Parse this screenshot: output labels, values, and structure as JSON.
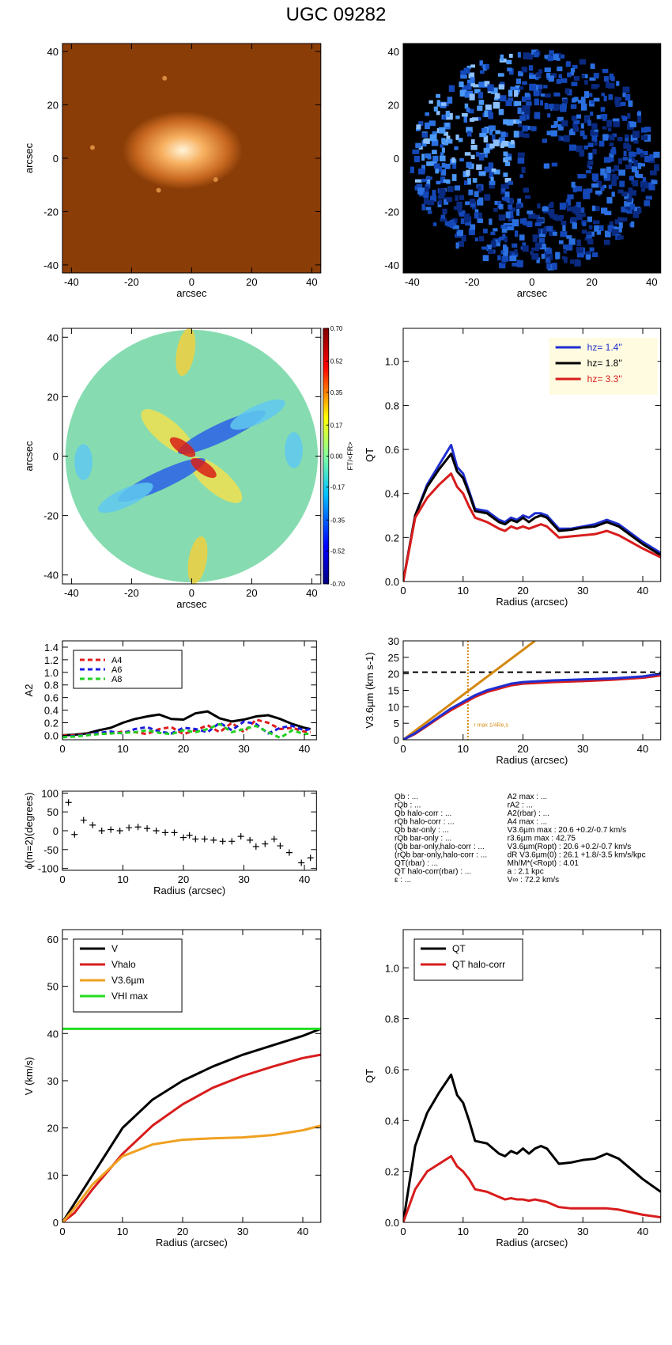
{
  "title": "UGC 09282",
  "chart_data": [
    {
      "type": "image",
      "colormap": "orange",
      "xlim": [
        -43,
        43
      ],
      "ylim": [
        -43,
        43
      ],
      "xticks": [
        -40,
        -20,
        0,
        20,
        40
      ],
      "yticks": [
        -40,
        -20,
        0,
        20,
        40
      ],
      "xlabel": "arcsec",
      "ylabel": "arcsec"
    },
    {
      "type": "image",
      "colormap": "blue",
      "xlim": [
        -43,
        43
      ],
      "ylim": [
        -43,
        43
      ],
      "xticks": [
        -40,
        -20,
        0,
        20,
        40
      ],
      "yticks": [
        -40,
        -20,
        0,
        20,
        40
      ],
      "xlabel": "arcsec"
    },
    {
      "type": "image",
      "colormap": "map",
      "xlim": [
        -43,
        43
      ],
      "ylim": [
        -43,
        43
      ],
      "xticks": [
        -40,
        -20,
        0,
        20,
        40
      ],
      "yticks": [
        -40,
        -20,
        0,
        20,
        40
      ],
      "xlabel": "arcsec",
      "ylabel": "arcsec",
      "clim": [
        -0.7,
        0.7
      ],
      "clabel": "FT/<FR>",
      "cticks": [
        {
          "value": 0.7,
          "label": "0.70"
        },
        {
          "value": 0.52,
          "label": "0.52"
        },
        {
          "value": 0.35,
          "label": "0.35"
        },
        {
          "value": 0.17,
          "label": "0.17"
        },
        {
          "value": 0,
          "label": "0.00"
        },
        {
          "value": -0.17,
          "label": "-0.17"
        },
        {
          "value": -0.35,
          "label": "-0.35"
        },
        {
          "value": -0.52,
          "label": "-0.52"
        },
        {
          "value": -0.7,
          "label": "-0.70"
        }
      ]
    },
    {
      "type": "line",
      "xlim": [
        0,
        43
      ],
      "ylim": [
        0,
        1.15
      ],
      "xticks": [
        0,
        10,
        20,
        30,
        40
      ],
      "yticks": [
        {
          "value": 0,
          "label": "0.0"
        },
        {
          "value": 0.2,
          "label": "0.2"
        },
        {
          "value": 0.4,
          "label": "0.4"
        },
        {
          "value": 0.6,
          "label": "0.6"
        },
        {
          "value": 0.8,
          "label": "0.8"
        },
        {
          "value": 1.0,
          "label": "1.0"
        }
      ],
      "xlabel": "Radius (arcsec)",
      "ylabel": "QT",
      "legend": "upper right",
      "series": [
        {
          "name": "hz=  1.4''",
          "color": "#1f2fd0",
          "x": [
            0,
            2,
            4,
            6,
            8,
            9,
            10,
            11,
            12,
            14,
            16,
            17,
            18,
            19,
            20,
            21,
            22,
            23,
            24,
            26,
            28,
            30,
            32,
            34,
            36,
            38,
            40,
            43
          ],
          "values": [
            0,
            0.3,
            0.44,
            0.53,
            0.62,
            0.52,
            0.49,
            0.41,
            0.33,
            0.32,
            0.28,
            0.27,
            0.29,
            0.28,
            0.3,
            0.29,
            0.31,
            0.31,
            0.3,
            0.24,
            0.24,
            0.25,
            0.26,
            0.28,
            0.26,
            0.22,
            0.18,
            0.13
          ]
        },
        {
          "name": "hz=  1.8''",
          "color": "#000000",
          "x": [
            0,
            2,
            4,
            6,
            8,
            9,
            10,
            11,
            12,
            14,
            16,
            17,
            18,
            19,
            20,
            21,
            22,
            23,
            24,
            26,
            28,
            30,
            32,
            34,
            36,
            38,
            40,
            43
          ],
          "values": [
            0,
            0.3,
            0.43,
            0.51,
            0.58,
            0.5,
            0.47,
            0.4,
            0.32,
            0.31,
            0.27,
            0.26,
            0.28,
            0.27,
            0.29,
            0.27,
            0.29,
            0.3,
            0.29,
            0.23,
            0.235,
            0.245,
            0.25,
            0.27,
            0.25,
            0.21,
            0.17,
            0.12
          ]
        },
        {
          "name": "hz=  3.3''",
          "color": "#d81c1c",
          "x": [
            0,
            2,
            4,
            6,
            8,
            9,
            10,
            11,
            12,
            14,
            16,
            17,
            18,
            19,
            20,
            21,
            22,
            23,
            24,
            26,
            28,
            30,
            32,
            34,
            36,
            38,
            40,
            43
          ],
          "values": [
            0,
            0.29,
            0.38,
            0.44,
            0.49,
            0.43,
            0.4,
            0.34,
            0.29,
            0.27,
            0.24,
            0.23,
            0.25,
            0.24,
            0.25,
            0.24,
            0.25,
            0.26,
            0.25,
            0.2,
            0.205,
            0.21,
            0.215,
            0.23,
            0.21,
            0.18,
            0.15,
            0.11
          ]
        }
      ]
    },
    {
      "type": "line",
      "xlim": [
        0,
        42
      ],
      "ylim": [
        -0.07,
        1.5
      ],
      "xticks": [
        0,
        10,
        20,
        30,
        40
      ],
      "yticks": [
        {
          "value": 0,
          "label": "0.0"
        },
        {
          "value": 0.2,
          "label": "0.2"
        },
        {
          "value": 0.4,
          "label": "0.4"
        },
        {
          "value": 0.6,
          "label": "0.6"
        },
        {
          "value": 0.8,
          "label": "0.8"
        },
        {
          "value": 1.0,
          "label": "1.0"
        },
        {
          "value": 1.2,
          "label": "1.2"
        },
        {
          "value": 1.4,
          "label": "1.4"
        }
      ],
      "ylabel": "A2",
      "legend": "upper left",
      "series": [
        {
          "color": "#000000",
          "x": [
            0,
            2,
            4,
            6,
            8,
            10,
            12,
            14,
            16,
            18,
            20,
            22,
            24,
            26,
            28,
            30,
            32,
            34,
            36,
            38,
            40,
            41
          ],
          "values": [
            0,
            0.01,
            0.03,
            0.08,
            0.12,
            0.2,
            0.26,
            0.3,
            0.33,
            0.26,
            0.25,
            0.35,
            0.38,
            0.27,
            0.22,
            0.25,
            0.3,
            0.32,
            0.26,
            0.18,
            0.12,
            0.1
          ]
        },
        {
          "name": "A4",
          "color": "#e01c1c",
          "dash": true,
          "x": [
            0,
            2,
            4,
            6,
            8,
            10,
            12,
            14,
            16,
            18,
            20,
            22,
            24,
            26,
            28,
            30,
            32,
            34,
            36,
            38,
            40,
            41
          ],
          "values": [
            0,
            0,
            0.02,
            0.03,
            0.03,
            0.06,
            0.05,
            0.02,
            0.1,
            0.13,
            0.02,
            0.08,
            0.16,
            0.05,
            0.2,
            0.05,
            0.25,
            0.2,
            0.1,
            0.12,
            0.06,
            0.05
          ]
        },
        {
          "name": "A6",
          "color": "#1c1ce0",
          "dash": true,
          "x": [
            0,
            2,
            4,
            6,
            8,
            10,
            12,
            14,
            16,
            18,
            20,
            22,
            24,
            26,
            28,
            30,
            32,
            34,
            36,
            38,
            40,
            41
          ],
          "values": [
            -0.02,
            -0.01,
            0.01,
            0.04,
            0.06,
            0.03,
            0.1,
            0.13,
            0.06,
            0.03,
            0.12,
            0.1,
            0.05,
            0.2,
            0.08,
            0.22,
            0.18,
            0.03,
            0.12,
            0.15,
            0.08,
            0.1
          ]
        },
        {
          "name": "A8",
          "color": "#22d022",
          "dash": true,
          "x": [
            0,
            2,
            4,
            6,
            8,
            10,
            12,
            14,
            16,
            18,
            20,
            22,
            24,
            26,
            28,
            30,
            32,
            34,
            36,
            38,
            40,
            41
          ],
          "values": [
            -0.03,
            -0.02,
            0,
            0.02,
            0.03,
            0.04,
            0.05,
            0.08,
            0.04,
            0.02,
            0.08,
            0.05,
            0.1,
            0.18,
            0.05,
            0.1,
            0.15,
            0.05,
            -0.04,
            0.08,
            0.02,
            0.03
          ]
        }
      ]
    },
    {
      "type": "line",
      "xlim": [
        0,
        43
      ],
      "ylim": [
        0,
        30
      ],
      "xticks": [
        0,
        10,
        20,
        30,
        40
      ],
      "yticks": [
        0,
        5,
        10,
        15,
        20,
        25,
        30
      ],
      "xlabel": "Radius (arcsec)",
      "ylabel": "V3.6µm (km s-1)",
      "hlines": [
        {
          "y": 20.5,
          "color": "#000000"
        }
      ],
      "vlines": [
        {
          "x": 10.8,
          "color": "#d4880f"
        }
      ],
      "annotation": "r max 1/4Re,s",
      "series": [
        {
          "color": "#d4880f",
          "x": [
            0,
            22
          ],
          "values": [
            0,
            30
          ]
        },
        {
          "color": "#d81c1c",
          "x": [
            0,
            2,
            4,
            6,
            8,
            10,
            12,
            14,
            16,
            18,
            20,
            25,
            30,
            35,
            40,
            43
          ],
          "values": [
            0,
            1.8,
            4.2,
            6.7,
            9,
            11,
            13,
            14.5,
            15.5,
            16.5,
            17,
            17.5,
            17.8,
            18.2,
            18.8,
            19.5
          ]
        },
        {
          "color": "#1f2fd0",
          "x": [
            0,
            2,
            4,
            6,
            8,
            10,
            12,
            14,
            16,
            18,
            20,
            25,
            30,
            35,
            40,
            43
          ],
          "values": [
            0,
            2,
            4.5,
            7,
            9.5,
            11.5,
            13.5,
            15,
            16,
            17,
            17.5,
            18,
            18.3,
            18.6,
            19.2,
            20
          ]
        }
      ]
    },
    {
      "type": "scatter",
      "xlim": [
        0,
        42
      ],
      "ylim": [
        -105,
        105
      ],
      "xticks": [
        0,
        10,
        20,
        30,
        40
      ],
      "yticks": [
        -100,
        -50,
        0,
        50,
        100
      ],
      "xlabel": "Radius (arcsec)",
      "ylabel": "ϕ(m=2)(degrees)",
      "x": [
        1,
        2,
        3.5,
        5,
        6.5,
        8,
        9.5,
        11,
        12.5,
        14,
        15.5,
        17,
        18.5,
        20,
        21,
        22,
        23.5,
        25,
        26.5,
        28,
        29.5,
        31,
        32,
        33.5,
        35,
        36,
        37.5,
        39.5,
        41
      ],
      "values": [
        75,
        -10,
        28,
        15,
        0,
        3,
        0,
        8,
        10,
        6,
        0,
        -5,
        -5,
        -18,
        -12,
        -22,
        -22,
        -25,
        -28,
        -28,
        -15,
        -25,
        -42,
        -35,
        -22,
        -40,
        -58,
        -85,
        -72
      ]
    },
    {
      "type": "line",
      "xlim": [
        0,
        43
      ],
      "ylim": [
        0,
        62
      ],
      "xticks": [
        0,
        10,
        20,
        30,
        40
      ],
      "yticks": [
        0,
        10,
        20,
        30,
        40,
        50,
        60
      ],
      "xlabel": "Radius (arcsec)",
      "ylabel": "V (km/s)",
      "legend": "upper left",
      "series": [
        {
          "name": "V",
          "color": "#000000",
          "x": [
            0,
            2,
            5,
            10,
            15,
            20,
            25,
            30,
            35,
            40,
            43
          ],
          "values": [
            0,
            4,
            10,
            20,
            26,
            30,
            33,
            35.5,
            37.5,
            39.5,
            41
          ]
        },
        {
          "name": "Vhalo",
          "color": "#d81c1c",
          "x": [
            0,
            2,
            5,
            10,
            15,
            20,
            25,
            30,
            35,
            40,
            43
          ],
          "values": [
            0,
            2,
            7,
            14.5,
            20.5,
            25,
            28.5,
            31,
            33,
            34.8,
            35.5
          ]
        },
        {
          "name": "V3.6µm",
          "color": "#f0a020",
          "x": [
            0,
            2,
            5,
            10,
            15,
            20,
            25,
            30,
            35,
            40,
            43
          ],
          "values": [
            0,
            3,
            8,
            14,
            16.5,
            17.5,
            17.8,
            18,
            18.5,
            19.5,
            20.5
          ]
        },
        {
          "name": "VHI max",
          "color": "#22dd22",
          "x": [
            0,
            43
          ],
          "values": [
            41,
            41
          ]
        }
      ]
    },
    {
      "type": "line",
      "xlim": [
        0,
        43
      ],
      "ylim": [
        0,
        1.15
      ],
      "xticks": [
        0,
        10,
        20,
        30,
        40
      ],
      "yticks": [
        {
          "value": 0,
          "label": "0.0"
        },
        {
          "value": 0.2,
          "label": "0.2"
        },
        {
          "value": 0.4,
          "label": "0.4"
        },
        {
          "value": 0.6,
          "label": "0.6"
        },
        {
          "value": 0.8,
          "label": "0.8"
        },
        {
          "value": 1.0,
          "label": "1.0"
        }
      ],
      "xlabel": "Radius (arcsec)",
      "ylabel": "QT",
      "legend": "upper left",
      "series": [
        {
          "name": "QT",
          "color": "#000000",
          "x": [
            0,
            2,
            4,
            6,
            8,
            9,
            10,
            11,
            12,
            14,
            16,
            17,
            18,
            19,
            20,
            21,
            22,
            23,
            24,
            26,
            28,
            30,
            32,
            34,
            36,
            38,
            40,
            43
          ],
          "values": [
            0,
            0.3,
            0.43,
            0.51,
            0.58,
            0.5,
            0.47,
            0.4,
            0.32,
            0.31,
            0.27,
            0.26,
            0.28,
            0.27,
            0.29,
            0.27,
            0.29,
            0.3,
            0.29,
            0.23,
            0.235,
            0.245,
            0.25,
            0.27,
            0.25,
            0.21,
            0.17,
            0.12
          ]
        },
        {
          "name": "QT halo-corr",
          "color": "#d81c1c",
          "x": [
            0,
            2,
            4,
            6,
            8,
            9,
            10,
            11,
            12,
            14,
            16,
            17,
            18,
            19,
            20,
            21,
            22,
            23,
            24,
            26,
            28,
            30,
            32,
            34,
            36,
            38,
            40,
            43
          ],
          "values": [
            0,
            0.13,
            0.2,
            0.23,
            0.26,
            0.22,
            0.2,
            0.17,
            0.13,
            0.12,
            0.1,
            0.09,
            0.095,
            0.09,
            0.09,
            0.085,
            0.09,
            0.085,
            0.08,
            0.06,
            0.055,
            0.055,
            0.055,
            0.055,
            0.05,
            0.04,
            0.03,
            0.02
          ]
        }
      ]
    }
  ],
  "text_panel": {
    "left": [
      "Qb : ...",
      "rQb : ...",
      "Qb halo-corr : ...",
      "rQb halo-corr : ...",
      "Qb bar-only : ...",
      "rQb bar-only : ...",
      "(Qb bar-only,halo-corr : ...",
      "(rQb bar-only,halo-corr : ...",
      "QT(rbar) : ...",
      "QT halo-corr(rbar) : ...",
      "ε : ..."
    ],
    "right": [
      "A2 max : ...",
      "rA2 : ...",
      "A2(rbar) : ...",
      "A4 max : ...",
      "V3.6µm max :  20.6 +0.2/-0.7 km/s",
      "r3.6µm max :  42.75",
      "V3.6µm(Ropt) :  20.6 +0.2/-0.7 km/s",
      "dR V3.6µm(0) :  26.1 +1.8/-3.5 km/s/kpc",
      "Mh/M*(<Ropt) :  4.01",
      "a :   2.1 kpc",
      "V∞ :  72.2 km/s"
    ]
  }
}
